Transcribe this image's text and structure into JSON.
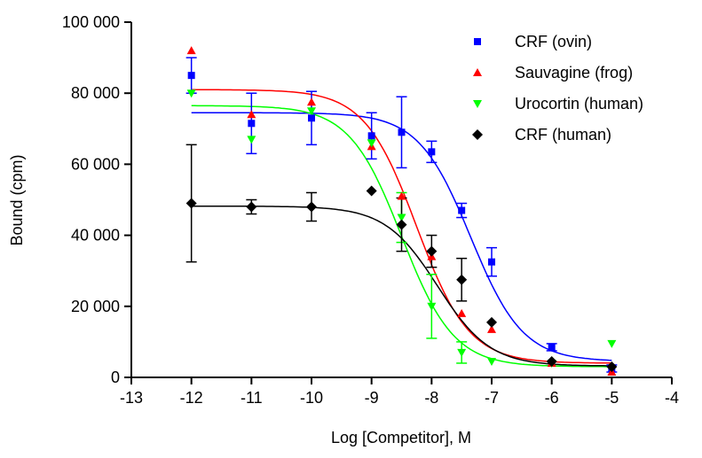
{
  "chart_data": {
    "type": "scatter",
    "title": "",
    "xlabel": "Log [Competitor], M",
    "ylabel": "Bound (cpm)",
    "xlim": [
      -13,
      -4
    ],
    "ylim": [
      0,
      100000
    ],
    "x_ticks": [
      -13,
      -12,
      -11,
      -10,
      -9,
      -8,
      -7,
      -6,
      -5,
      -4
    ],
    "x_tick_labels": [
      "-13",
      "-12",
      "-11",
      "-10",
      "-9",
      "-8",
      "-7",
      "-6",
      "-5",
      "-4"
    ],
    "y_ticks": [
      0,
      20000,
      40000,
      60000,
      80000,
      100000
    ],
    "y_tick_labels": [
      "0",
      "20 000",
      "40 000",
      "60 000",
      "80 000",
      "100 000"
    ],
    "grid": false,
    "legend_position": "top-right",
    "series": [
      {
        "name": "CRF (ovin)",
        "color": "#0000ff",
        "marker": "square",
        "x": [
          -12,
          -11,
          -10,
          -9,
          -8.5,
          -8,
          -7.5,
          -7,
          -6,
          -5
        ],
        "y": [
          85000,
          71500,
          73000,
          68000,
          69000,
          63500,
          47000,
          32500,
          8500,
          2500
        ],
        "err": [
          5000,
          8500,
          7500,
          6500,
          10000,
          3000,
          2000,
          4000,
          1000,
          1000
        ],
        "fit": {
          "top": 74500,
          "bottom": 4500,
          "log_ec50": -7.35
        }
      },
      {
        "name": "Sauvagine (frog)",
        "color": "#ff0000",
        "marker": "triangle-up",
        "x": [
          -12,
          -11,
          -10,
          -9,
          -8.5,
          -8,
          -7.5,
          -7,
          -6,
          -5
        ],
        "y": [
          92000,
          74000,
          77500,
          65000,
          51000,
          34000,
          18000,
          13500,
          4000,
          1500
        ],
        "err": [
          0,
          0,
          0,
          0,
          0,
          0,
          0,
          0,
          0,
          0
        ],
        "fit": {
          "top": 81000,
          "bottom": 4000,
          "log_ec50": -8.25
        }
      },
      {
        "name": "Urocortin (human)",
        "color": "#00ff00",
        "marker": "triangle-down",
        "x": [
          -12,
          -11,
          -10,
          -9,
          -8.5,
          -8,
          -7.5,
          -7,
          -6,
          -5
        ],
        "y": [
          80000,
          67000,
          75000,
          66000,
          45000,
          20000,
          7000,
          4500,
          4000,
          9500
        ],
        "err": [
          0,
          0,
          0,
          0,
          7000,
          9000,
          3000,
          0,
          0,
          0
        ],
        "fit": {
          "top": 76500,
          "bottom": 3000,
          "log_ec50": -8.5
        }
      },
      {
        "name": "CRF (human)",
        "color": "#000000",
        "marker": "diamond",
        "x": [
          -12,
          -11,
          -10,
          -9,
          -8.5,
          -8,
          -7.5,
          -7,
          -6,
          -5
        ],
        "y": [
          49000,
          48000,
          48000,
          52500,
          43000,
          35500,
          27500,
          15500,
          4500,
          3000
        ],
        "err": [
          16500,
          2000,
          4000,
          0,
          7500,
          4500,
          6000,
          0,
          0,
          0
        ],
        "fit": {
          "top": 48200,
          "bottom": 3200,
          "log_ec50": -7.9
        }
      }
    ]
  }
}
